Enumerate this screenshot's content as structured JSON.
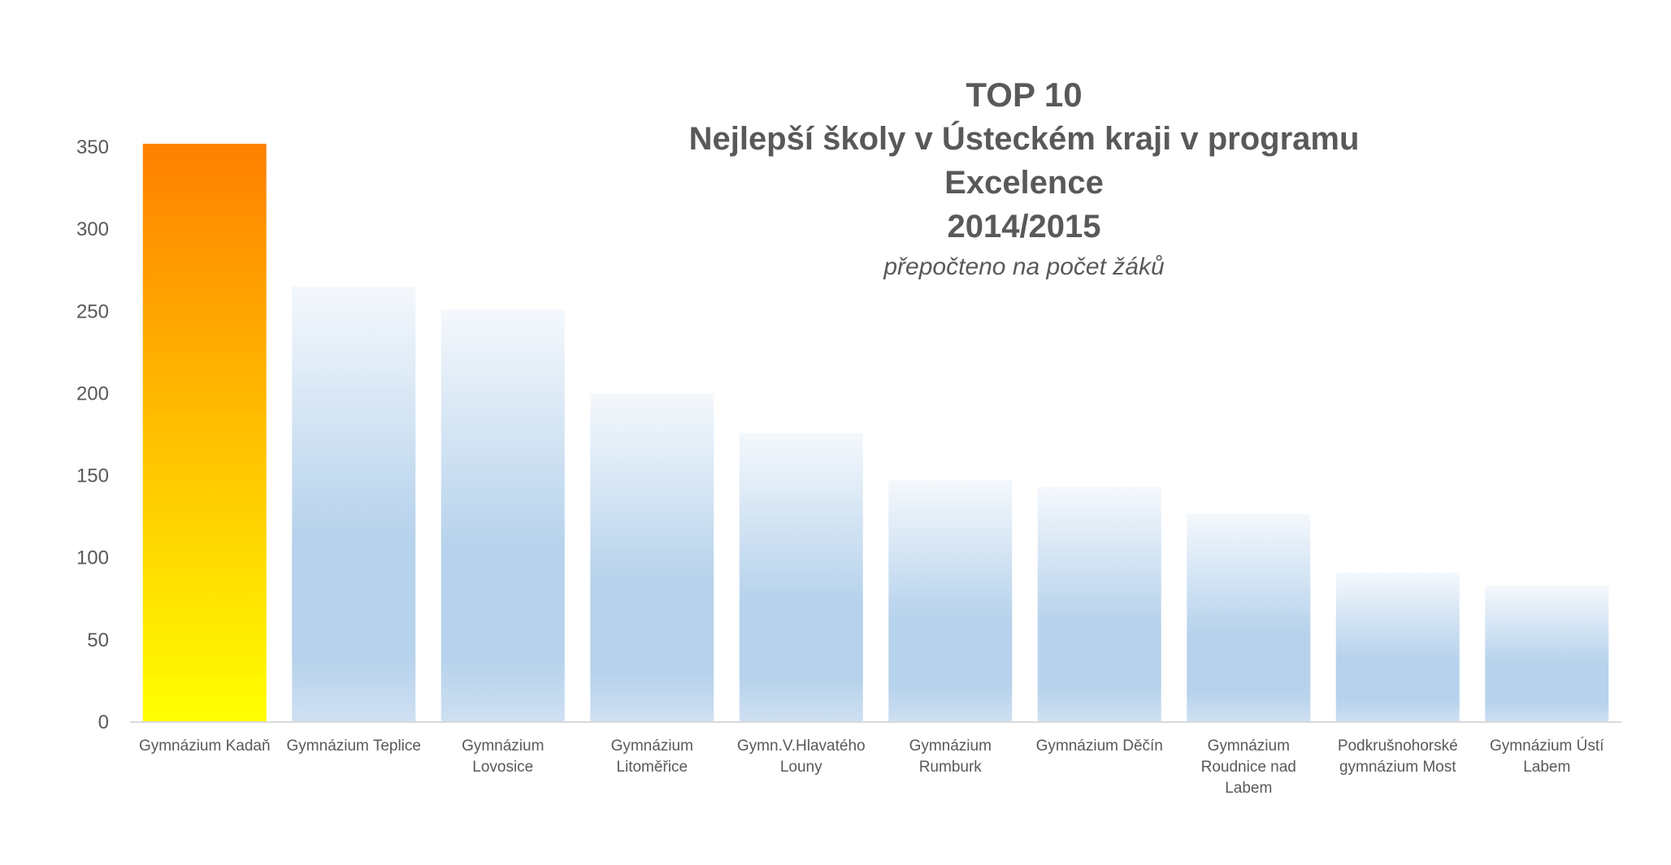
{
  "colors": {
    "highlight_top": "#FF8000",
    "highlight_bottom": "#FFFF00",
    "bar_top": "#F4F8FC",
    "bar_mid": "#B6D2EC",
    "bar_bottom": "#CFE0F2",
    "axis": "#D9D9D9",
    "text": "#595959"
  },
  "chart_data": {
    "type": "bar",
    "title_lines": [
      "TOP 10",
      "Nejlepší  školy v Ústeckém kraji v programu Excelence",
      "2014/2015"
    ],
    "subtitle": "přepočteno na počet žáků",
    "xlabel": "",
    "ylabel": "",
    "ylim": [
      0,
      350
    ],
    "yticks": [
      0,
      50,
      100,
      150,
      200,
      250,
      300,
      350
    ],
    "grid": false,
    "legend": "none",
    "highlight_index": 0,
    "categories": [
      [
        "Gymnázium  Kadaň"
      ],
      [
        "Gymnázium Teplice"
      ],
      [
        "Gymnázium",
        "Lovosice"
      ],
      [
        "Gymnázium",
        "Litoměřice"
      ],
      [
        "Gymn.V.Hlavatého",
        "Louny"
      ],
      [
        "Gymnázium",
        "Rumburk"
      ],
      [
        "Gymnázium Děčín"
      ],
      [
        "Gymnázium",
        "Roudnice nad",
        "Labem"
      ],
      [
        "Podkrušnohorské",
        "gymnázium Most"
      ],
      [
        "Gymnázium Ústí",
        "Labem"
      ]
    ],
    "values": [
      352,
      265,
      251,
      200,
      176,
      147,
      143,
      127,
      91,
      83
    ]
  }
}
